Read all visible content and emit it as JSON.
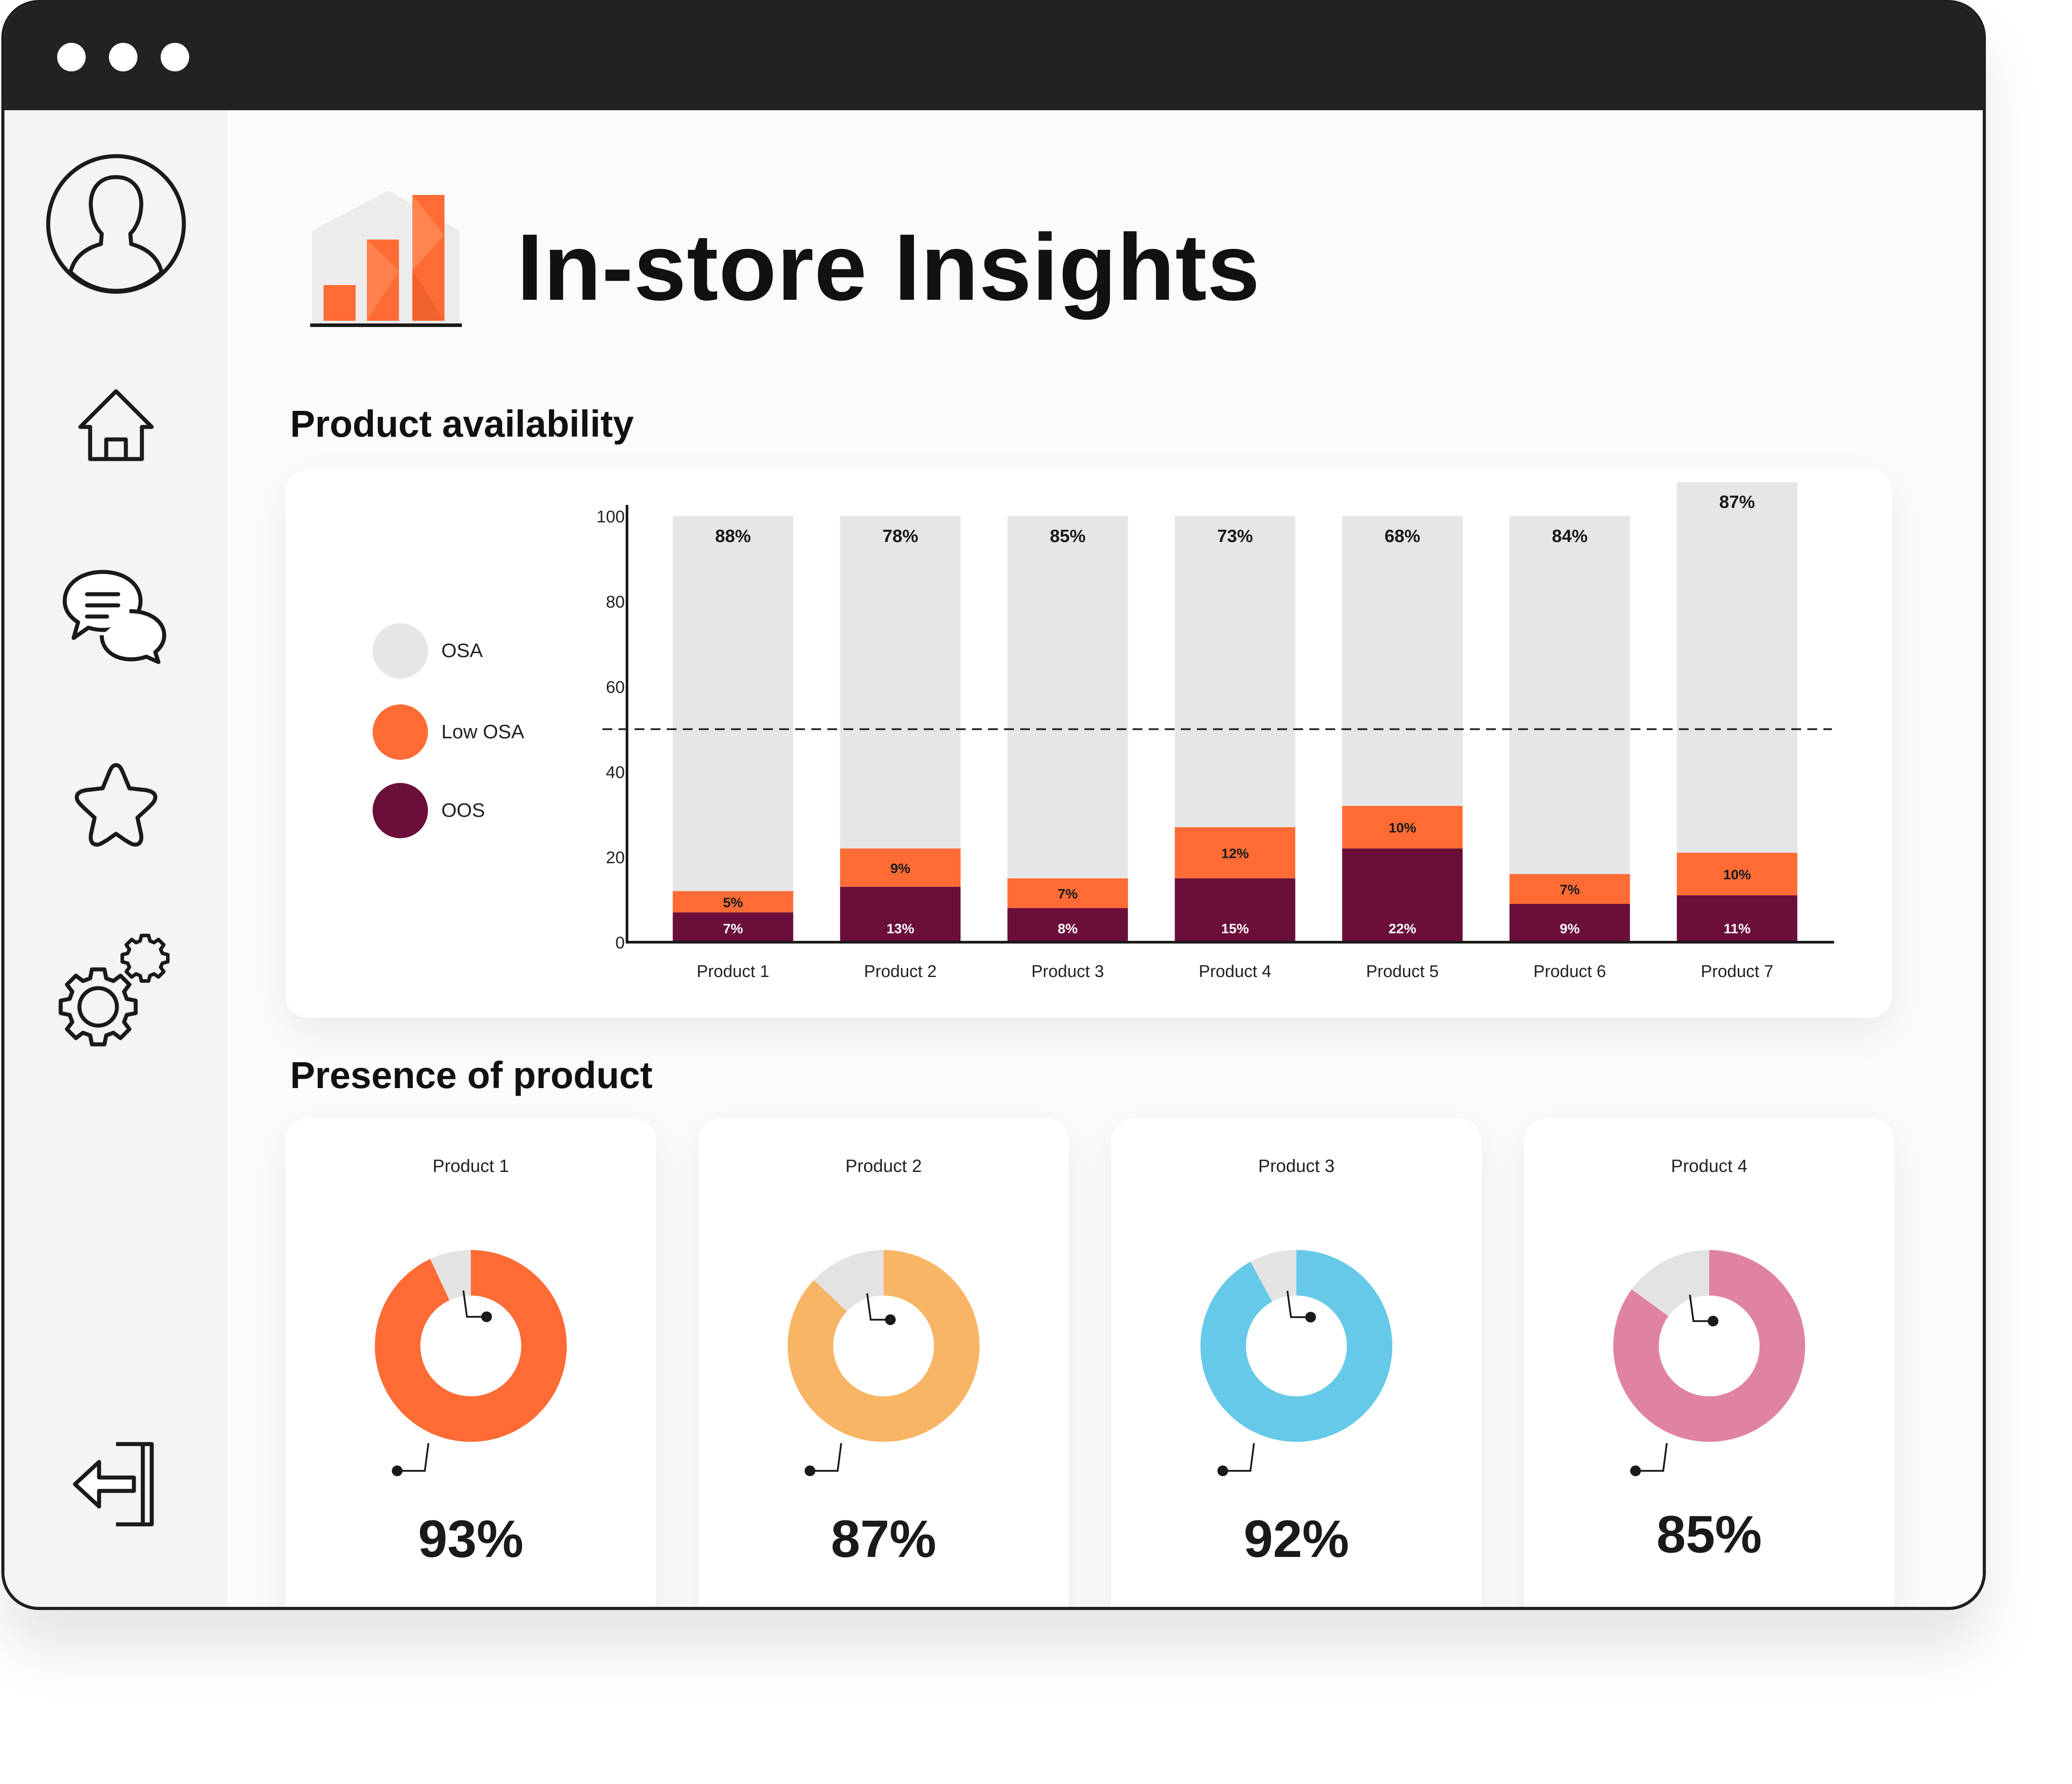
{
  "window": {
    "controls": [
      "window-dot-1",
      "window-dot-2",
      "window-dot-3"
    ]
  },
  "sidebar": {
    "items": [
      {
        "name": "avatar",
        "icon": "user-avatar-icon"
      },
      {
        "name": "home",
        "icon": "home-icon"
      },
      {
        "name": "messages",
        "icon": "chat-bubbles-icon"
      },
      {
        "name": "favorites",
        "icon": "star-icon"
      },
      {
        "name": "settings",
        "icon": "gear-icon"
      },
      {
        "name": "logout",
        "icon": "logout-icon"
      }
    ]
  },
  "header": {
    "title": "In-store Insights",
    "logo_icon": "bar-chart-logo-icon"
  },
  "availability": {
    "title": "Product availability",
    "legend": [
      {
        "label": "OSA",
        "color": "#e5e6e8"
      },
      {
        "label": "Low OSA",
        "color": "#ff6b35"
      },
      {
        "label": "OOS",
        "color": "#6b0f3a"
      }
    ]
  },
  "presence": {
    "title": "Presence of product",
    "cards": [
      {
        "title": "Product 1",
        "value": "93%",
        "color": "#ff6b35"
      },
      {
        "title": "Product 2",
        "value": "87%",
        "color": "#f8b565"
      },
      {
        "title": "Product 3",
        "value": "92%",
        "color": "#66c9e8"
      },
      {
        "title": "Product 4",
        "value": "85%",
        "color": "#e083a3"
      }
    ]
  },
  "colors": {
    "osa": "#e5e6e8",
    "low_osa": "#ff6b35",
    "oos": "#6b0f3a",
    "track": "#e3e3e3"
  },
  "chart_data": [
    {
      "type": "bar",
      "stacked": true,
      "categories": [
        "Product 1",
        "Product 2",
        "Product 3",
        "Product 4",
        "Product 5",
        "Product 6",
        "Product 7"
      ],
      "series": [
        {
          "name": "OOS",
          "values": [
            7,
            13,
            8,
            15,
            22,
            9,
            11
          ],
          "labels": [
            "7%",
            "13%",
            "8%",
            "15%",
            "22%",
            "9%",
            "11%"
          ]
        },
        {
          "name": "Low OSA",
          "values": [
            5,
            9,
            7,
            12,
            10,
            7,
            10
          ],
          "labels": [
            "5%",
            "9%",
            "7%",
            "12%",
            "10%",
            "7%",
            "10%"
          ]
        },
        {
          "name": "OSA",
          "values": [
            88,
            78,
            85,
            73,
            68,
            84,
            87
          ],
          "labels": [
            "88%",
            "78%",
            "85%",
            "73%",
            "68%",
            "84%",
            "87%"
          ]
        }
      ],
      "yticks": [
        0,
        20,
        40,
        60,
        80,
        100
      ],
      "ylim": [
        0,
        100
      ],
      "reference_line": 50,
      "legend": "left"
    },
    {
      "type": "pie",
      "title": "Product 1",
      "values": [
        93,
        7
      ],
      "label": "93%"
    },
    {
      "type": "pie",
      "title": "Product 2",
      "values": [
        87,
        13
      ],
      "label": "87%"
    },
    {
      "type": "pie",
      "title": "Product 3",
      "values": [
        92,
        8
      ],
      "label": "92%"
    },
    {
      "type": "pie",
      "title": "Product 4",
      "values": [
        85,
        15
      ],
      "label": "85%"
    }
  ]
}
